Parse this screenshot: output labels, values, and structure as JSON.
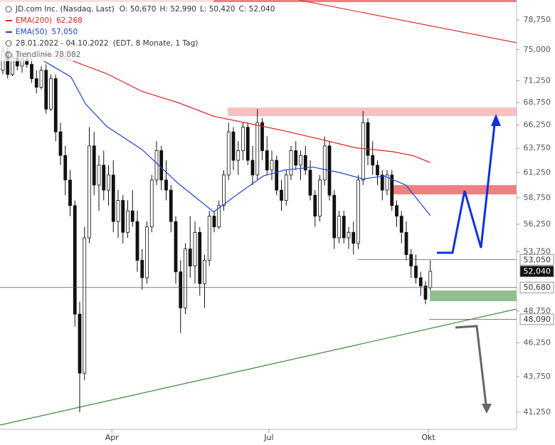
{
  "chart_data": {
    "type": "candlestick",
    "header": {
      "title": "JD.com Inc. (Nasdaq, Last)",
      "quote": [
        "O: 50,670",
        "H: 52,990",
        "L: 50,420",
        "C: 52,040"
      ],
      "range": "28.01.2022 - 04.10.2022",
      "range_note": "(EDT, 8 Monate, 1 Tag)",
      "trend_label": "Trendlinie",
      "trend_value": "78.082"
    },
    "log_scale": true,
    "ylim": [
      40110,
      81400
    ],
    "yticks": [
      {
        "value": 41250,
        "label": "41,250"
      },
      {
        "value": 43750,
        "label": "43,750"
      },
      {
        "value": 46250,
        "label": "46,250"
      },
      {
        "value": 48750,
        "label": "48,750"
      },
      {
        "value": 53750,
        "label": "53,750"
      },
      {
        "value": 56250,
        "label": "56,250"
      },
      {
        "value": 58750,
        "label": "58,750"
      },
      {
        "value": 61250,
        "label": "61,250"
      },
      {
        "value": 63750,
        "label": "63,750"
      },
      {
        "value": 66250,
        "label": "66,250"
      },
      {
        "value": 68750,
        "label": "68,750"
      },
      {
        "value": 71250,
        "label": "71,250"
      },
      {
        "value": 75000,
        "label": "75,000"
      },
      {
        "value": 78750,
        "label": "78,750"
      }
    ],
    "xticks": [
      {
        "value": 22.7,
        "label": "Apr"
      },
      {
        "value": 55.4,
        "label": "Jul"
      },
      {
        "value": 88.6,
        "label": "Okt"
      }
    ],
    "candles": [
      [
        72500,
        75500,
        72000,
        74800
      ],
      [
        74800,
        75200,
        71500,
        72000
      ],
      [
        72000,
        74500,
        71800,
        74000
      ],
      [
        74000,
        75000,
        72500,
        73000
      ],
      [
        73000,
        74500,
        72200,
        73800
      ],
      [
        73800,
        74800,
        72800,
        73200
      ],
      [
        73200,
        74000,
        71000,
        71500
      ],
      [
        71500,
        72500,
        69800,
        70500
      ],
      [
        70500,
        73000,
        70200,
        72500
      ],
      [
        72500,
        73200,
        67500,
        68000
      ],
      [
        68000,
        72000,
        67800,
        71500
      ],
      [
        71500,
        72000,
        64500,
        65500
      ],
      [
        65500,
        66500,
        62000,
        63000
      ],
      [
        63000,
        64000,
        59000,
        60500
      ],
      [
        60500,
        61500,
        57000,
        58000
      ],
      [
        58000,
        58500,
        47500,
        48500
      ],
      [
        48500,
        49500,
        41250,
        44000
      ],
      [
        44000,
        56000,
        43500,
        55000
      ],
      [
        55000,
        66000,
        54500,
        64000
      ],
      [
        64000,
        65500,
        59000,
        60000
      ],
      [
        60000,
        63000,
        57500,
        62000
      ],
      [
        62000,
        63500,
        58500,
        59500
      ],
      [
        59500,
        62000,
        58000,
        61000
      ],
      [
        61000,
        62500,
        55500,
        56500
      ],
      [
        56500,
        59500,
        55000,
        58500
      ],
      [
        58500,
        59000,
        54500,
        55500
      ],
      [
        55500,
        58500,
        55000,
        57500
      ],
      [
        57500,
        59500,
        56000,
        56500
      ],
      [
        56500,
        57500,
        52000,
        53000
      ],
      [
        53000,
        54000,
        50500,
        51500
      ],
      [
        51500,
        56500,
        51000,
        56000
      ],
      [
        56000,
        61000,
        55500,
        60500
      ],
      [
        60500,
        64500,
        60000,
        63500
      ],
      [
        63500,
        64000,
        59500,
        60500
      ],
      [
        60500,
        62500,
        58500,
        59500
      ],
      [
        59500,
        60000,
        55500,
        56500
      ],
      [
        56500,
        57000,
        51000,
        52000
      ],
      [
        52000,
        53000,
        47000,
        49000
      ],
      [
        49000,
        54500,
        48500,
        54000
      ],
      [
        54000,
        57000,
        51500,
        52500
      ],
      [
        52500,
        56500,
        51000,
        55500
      ],
      [
        55500,
        56000,
        50000,
        51000
      ],
      [
        51000,
        53500,
        49000,
        53000
      ],
      [
        53000,
        57500,
        52500,
        57000
      ],
      [
        57000,
        57500,
        55500,
        56000
      ],
      [
        56000,
        58500,
        55800,
        58000
      ],
      [
        58000,
        61500,
        57500,
        61000
      ],
      [
        61000,
        66500,
        60500,
        65500
      ],
      [
        65500,
        66000,
        61500,
        62500
      ],
      [
        62500,
        64500,
        61000,
        63500
      ],
      [
        63500,
        66500,
        62500,
        66000
      ],
      [
        66000,
        66500,
        62000,
        62500
      ],
      [
        62500,
        64000,
        60000,
        61000
      ],
      [
        61000,
        68000,
        60500,
        66500
      ],
      [
        66500,
        67000,
        62500,
        63500
      ],
      [
        63500,
        65000,
        61000,
        61500
      ],
      [
        61500,
        63500,
        60500,
        62500
      ],
      [
        62500,
        63000,
        59000,
        59500
      ],
      [
        59500,
        60500,
        57500,
        58500
      ],
      [
        58500,
        61500,
        58000,
        61000
      ],
      [
        61000,
        64000,
        60500,
        63500
      ],
      [
        63500,
        64500,
        61500,
        62000
      ],
      [
        62000,
        63500,
        60500,
        63000
      ],
      [
        63000,
        64000,
        61000,
        61500
      ],
      [
        61500,
        62500,
        58500,
        59000
      ],
      [
        59000,
        59500,
        56000,
        57000
      ],
      [
        57000,
        61000,
        56500,
        60500
      ],
      [
        60500,
        65000,
        60000,
        64000
      ],
      [
        64000,
        64500,
        58500,
        59000
      ],
      [
        59000,
        59500,
        54000,
        55000
      ],
      [
        55000,
        57500,
        54500,
        57000
      ],
      [
        57000,
        57500,
        54500,
        55000
      ],
      [
        55000,
        56000,
        54000,
        55500
      ],
      [
        55500,
        56500,
        53500,
        54500
      ],
      [
        54500,
        61000,
        54000,
        60500
      ],
      [
        60500,
        67800,
        60000,
        66500
      ],
      [
        66500,
        67000,
        62000,
        63000
      ],
      [
        63000,
        64500,
        61000,
        62000
      ],
      [
        62000,
        62500,
        60000,
        61000
      ],
      [
        61000,
        61500,
        58500,
        59500
      ],
      [
        59500,
        61500,
        59000,
        61000
      ],
      [
        61000,
        61500,
        57500,
        58000
      ],
      [
        58000,
        58500,
        56000,
        57000
      ],
      [
        57000,
        57500,
        54500,
        55500
      ],
      [
        55500,
        56500,
        53000,
        53500
      ],
      [
        53500,
        54000,
        51500,
        52500
      ],
      [
        52500,
        53500,
        51000,
        51500
      ],
      [
        51500,
        52000,
        50000,
        50800
      ],
      [
        50800,
        51200,
        49300,
        49700
      ],
      [
        50670,
        52990,
        50420,
        52040
      ]
    ],
    "lines": [
      {
        "name": "EMA(200)",
        "color": "#e02020",
        "value_label": "62,268",
        "x": [
          8.3,
          14.2,
          21.6,
          29.0,
          36.4,
          43.9,
          51.3,
          58.7,
          66.1,
          73.5,
          81.0,
          85.3,
          89.0
        ],
        "values": [
          74500,
          73700,
          72100,
          70000,
          68750,
          67200,
          66400,
          65600,
          64700,
          63800,
          63400,
          63000,
          62268
        ]
      },
      {
        "name": "EMA(50)",
        "color": "#2040d0",
        "value_label": "57,050",
        "x": [
          8.3,
          14.2,
          17.2,
          21.6,
          29.0,
          36.4,
          43.9,
          48.3,
          54.2,
          58.7,
          64.6,
          70.5,
          75.0,
          79.4,
          83.9,
          89.0
        ],
        "values": [
          73700,
          71700,
          68600,
          66100,
          63600,
          60200,
          57400,
          58900,
          60900,
          61500,
          61800,
          61200,
          60600,
          60900,
          60000,
          57050
        ]
      }
    ],
    "levels": [
      {
        "value": 53050,
        "label": "53,050"
      },
      {
        "value": 52040,
        "label": "52,040"
      },
      {
        "value": 50680,
        "label": "50,680"
      },
      {
        "value": 48090,
        "label": "48,090"
      }
    ]
  }
}
